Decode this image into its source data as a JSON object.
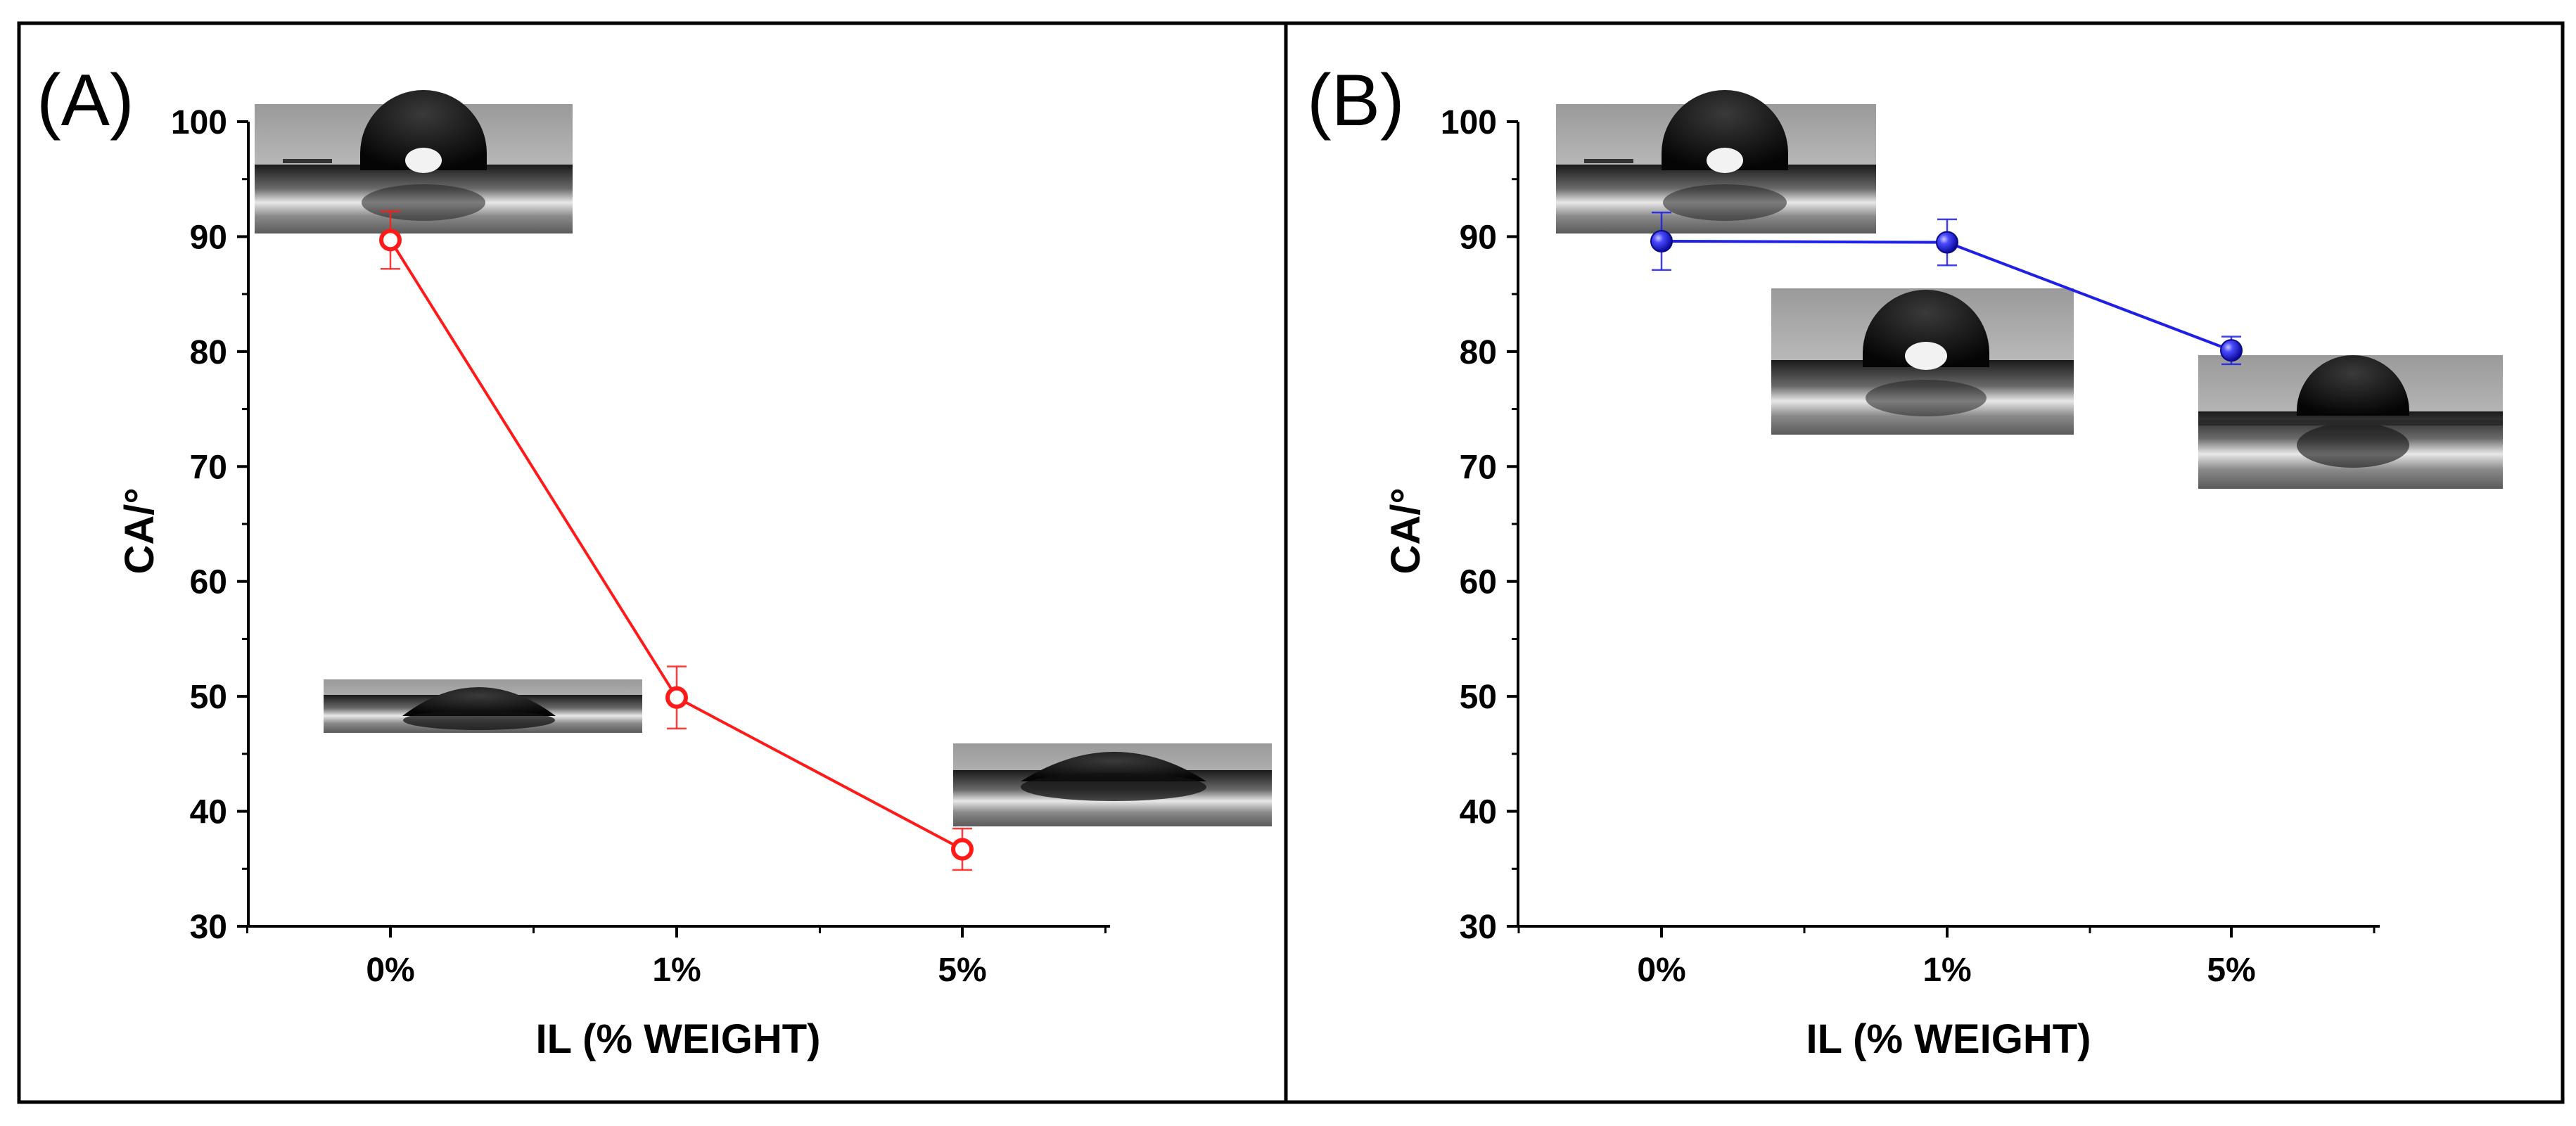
{
  "colors": {
    "series_a": "#ff1a1a",
    "series_b": "#1f1fe6",
    "frame": "#000000"
  },
  "chart_data": [
    {
      "type": "line",
      "panel_label": "(A)",
      "title": "",
      "xlabel": "IL (% WEIGHT)",
      "ylabel": "CA/°",
      "categories": [
        "0%",
        "1%",
        "5%"
      ],
      "ylim": [
        30,
        100
      ],
      "yticks": [
        30,
        40,
        50,
        60,
        70,
        80,
        90,
        100
      ],
      "series": [
        {
          "name": "A",
          "marker": "open-circle",
          "values": [
            89.7,
            49.9,
            36.7
          ],
          "errors": [
            2.5,
            2.7,
            1.8
          ]
        }
      ],
      "droplet_images": [
        {
          "near": "0%",
          "contact_angle": 89.7
        },
        {
          "near": "1%",
          "contact_angle": 49.9
        },
        {
          "near": "5%",
          "contact_angle": 36.7
        }
      ]
    },
    {
      "type": "line",
      "panel_label": "(B)",
      "title": "",
      "xlabel": "IL (% WEIGHT)",
      "ylabel": "CA/°",
      "categories": [
        "0%",
        "1%",
        "5%"
      ],
      "ylim": [
        30,
        100
      ],
      "yticks": [
        30,
        40,
        50,
        60,
        70,
        80,
        90,
        100
      ],
      "series": [
        {
          "name": "B",
          "marker": "filled-sphere",
          "values": [
            89.6,
            89.5,
            80.1
          ],
          "errors": [
            2.5,
            2.0,
            1.2
          ]
        }
      ],
      "droplet_images": [
        {
          "near": "0%",
          "contact_angle": 89.6
        },
        {
          "near": "1%",
          "contact_angle": 89.5
        },
        {
          "near": "5%",
          "contact_angle": 80.1
        }
      ]
    }
  ]
}
